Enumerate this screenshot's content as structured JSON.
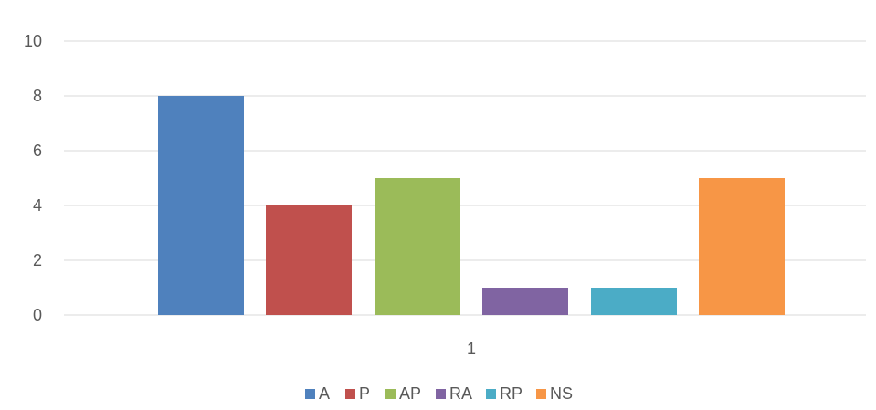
{
  "chart_data": {
    "type": "bar",
    "categories": [
      "1"
    ],
    "series": [
      {
        "name": "A",
        "values": [
          8
        ],
        "color": "#4f81bd"
      },
      {
        "name": "P",
        "values": [
          4
        ],
        "color": "#c0504d"
      },
      {
        "name": "AP",
        "values": [
          5
        ],
        "color": "#9bbb59"
      },
      {
        "name": "RA",
        "values": [
          1
        ],
        "color": "#8064a2"
      },
      {
        "name": "RP",
        "values": [
          1
        ],
        "color": "#4bacc6"
      },
      {
        "name": "NS",
        "values": [
          5
        ],
        "color": "#f79646"
      }
    ],
    "y_ticks": [
      0,
      2,
      4,
      6,
      8,
      10
    ],
    "ylim": [
      0,
      10
    ],
    "grid": true,
    "legend_position": "bottom"
  }
}
